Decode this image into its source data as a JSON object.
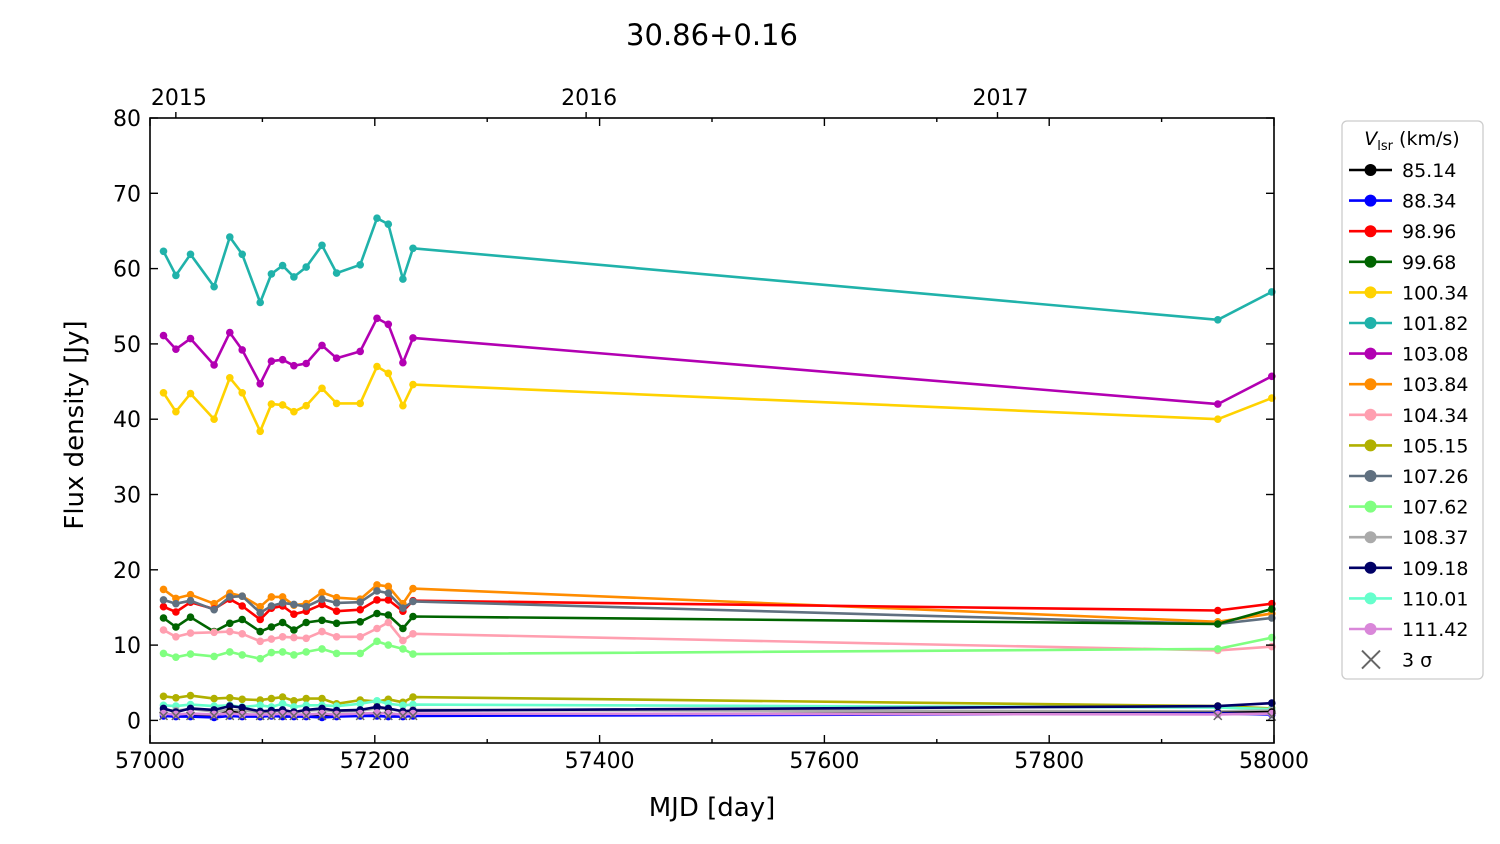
{
  "chart_data": {
    "type": "line",
    "title": "30.86+0.16",
    "xlabel": "MJD [day]",
    "ylabel": "Flux density [Jy]",
    "xlim": [
      57000,
      58000
    ],
    "ylim": [
      -3,
      80
    ],
    "xticks": [
      57000,
      57200,
      57400,
      57600,
      57800,
      58000
    ],
    "yticks": [
      0,
      10,
      20,
      30,
      40,
      50,
      60,
      70,
      80
    ],
    "top_axis": {
      "labels": [
        {
          "label": "2015",
          "mjd": 57023
        },
        {
          "label": "2016",
          "mjd": 57388
        },
        {
          "label": "2017",
          "mjd": 57754
        }
      ]
    },
    "legend": {
      "title_main": "V",
      "title_sub": "lsr",
      "title_unit": " (km/s)",
      "placement": "outside-right",
      "sigma_label": "3 σ"
    },
    "x": [
      57012,
      57023,
      57036,
      57057,
      57071,
      57082,
      57098,
      57108,
      57118,
      57128,
      57139,
      57153,
      57166,
      57187,
      57202,
      57212,
      57225,
      57234,
      57950,
      57998
    ],
    "series": [
      {
        "name": "101.82",
        "color": "#20b2aa",
        "values": [
          62.3,
          59.1,
          61.9,
          57.6,
          64.2,
          61.9,
          55.5,
          59.3,
          60.4,
          58.9,
          60.2,
          63.1,
          59.4,
          60.5,
          66.7,
          65.9,
          58.6,
          62.7,
          53.2,
          56.9
        ]
      },
      {
        "name": "103.08",
        "color": "#b200b2",
        "values": [
          51.1,
          49.3,
          50.7,
          47.2,
          51.5,
          49.2,
          44.7,
          47.7,
          47.9,
          47.1,
          47.4,
          49.8,
          48.1,
          49.0,
          53.4,
          52.6,
          47.5,
          50.8,
          42.0,
          45.7
        ]
      },
      {
        "name": "100.34",
        "color": "#ffd200",
        "values": [
          43.5,
          41.0,
          43.4,
          40.0,
          45.5,
          43.5,
          38.4,
          42.0,
          41.9,
          41.0,
          41.8,
          44.1,
          42.1,
          42.1,
          47.0,
          46.1,
          41.8,
          44.6,
          40.0,
          42.8
        ]
      },
      {
        "name": "103.84",
        "color": "#ff8c00",
        "values": [
          17.4,
          16.2,
          16.7,
          15.5,
          16.9,
          16.5,
          15.1,
          16.4,
          16.4,
          15.3,
          15.5,
          17.0,
          16.3,
          16.1,
          18.0,
          17.8,
          15.5,
          17.5,
          13.1,
          14.2
        ]
      },
      {
        "name": "98.96",
        "color": "#ff0000",
        "values": [
          15.1,
          14.4,
          15.7,
          14.8,
          16.1,
          15.2,
          13.4,
          14.9,
          15.2,
          14.1,
          14.5,
          15.4,
          14.5,
          14.7,
          16.0,
          16.0,
          14.5,
          15.9,
          14.6,
          15.5
        ]
      },
      {
        "name": "107.26",
        "color": "#607080",
        "values": [
          16.0,
          15.5,
          15.9,
          14.7,
          16.4,
          16.5,
          14.3,
          15.2,
          15.6,
          15.4,
          15.1,
          16.1,
          15.6,
          15.7,
          17.2,
          16.9,
          14.9,
          15.8,
          12.8,
          13.6
        ]
      },
      {
        "name": "99.68",
        "color": "#006400",
        "values": [
          13.6,
          12.4,
          13.7,
          11.8,
          12.9,
          13.4,
          11.8,
          12.4,
          13.0,
          12.0,
          13.0,
          13.3,
          12.9,
          13.1,
          14.2,
          14.0,
          12.2,
          13.8,
          12.8,
          14.8
        ]
      },
      {
        "name": "104.34",
        "color": "#ff9fb0",
        "values": [
          12.0,
          11.1,
          11.6,
          11.7,
          11.8,
          11.5,
          10.5,
          10.8,
          11.1,
          11.0,
          10.9,
          11.8,
          11.1,
          11.1,
          12.2,
          13.0,
          10.6,
          11.5,
          9.3,
          9.8
        ]
      },
      {
        "name": "107.62",
        "color": "#80ff80",
        "values": [
          8.9,
          8.4,
          8.8,
          8.5,
          9.1,
          8.7,
          8.2,
          9.0,
          9.1,
          8.7,
          9.1,
          9.5,
          8.9,
          8.9,
          10.5,
          10.0,
          9.5,
          8.8,
          9.5,
          11.0
        ]
      },
      {
        "name": "105.15",
        "color": "#b0b000",
        "values": [
          3.2,
          3.0,
          3.3,
          2.9,
          3.0,
          2.8,
          2.7,
          2.9,
          3.1,
          2.6,
          2.9,
          2.9,
          2.2,
          2.7,
          2.5,
          2.8,
          2.4,
          3.1,
          1.9,
          1.6
        ]
      },
      {
        "name": "110.01",
        "color": "#66ffcc",
        "values": [
          2.0,
          1.9,
          2.1,
          1.9,
          2.0,
          1.8,
          2.0,
          1.8,
          2.2,
          1.8,
          2.0,
          2.0,
          1.9,
          2.2,
          2.6,
          2.2,
          2.0,
          2.1,
          1.7,
          1.5
        ]
      },
      {
        "name": "108.37",
        "color": "#aaaaaa",
        "values": [
          1.4,
          1.3,
          1.5,
          1.2,
          1.4,
          1.3,
          1.1,
          1.2,
          1.3,
          1.1,
          1.3,
          1.4,
          1.2,
          1.3,
          1.6,
          1.5,
          1.2,
          1.4,
          1.2,
          1.3
        ]
      },
      {
        "name": "109.18",
        "color": "#000066",
        "values": [
          1.6,
          1.1,
          1.6,
          1.4,
          1.9,
          1.7,
          1.2,
          1.3,
          1.4,
          1.1,
          1.4,
          1.6,
          1.3,
          1.4,
          1.8,
          1.6,
          1.2,
          1.3,
          1.9,
          2.3
        ]
      },
      {
        "name": "85.14",
        "color": "#000000",
        "values": [
          0.9,
          0.7,
          0.8,
          0.6,
          1.2,
          0.9,
          0.5,
          0.7,
          0.8,
          0.6,
          0.8,
          0.7,
          0.6,
          0.8,
          0.9,
          1.0,
          0.6,
          0.8,
          1.0,
          1.1
        ]
      },
      {
        "name": "88.34",
        "color": "#0000ff",
        "values": [
          0.6,
          0.5,
          0.5,
          0.4,
          0.6,
          0.5,
          0.5,
          0.6,
          0.5,
          0.5,
          0.5,
          0.4,
          0.5,
          0.6,
          0.6,
          0.5,
          0.5,
          0.6,
          0.9,
          0.8
        ]
      },
      {
        "name": "111.42",
        "color": "#d987d9",
        "values": [
          0.9,
          0.8,
          0.9,
          0.8,
          0.9,
          0.8,
          0.8,
          0.8,
          0.9,
          0.8,
          0.8,
          0.9,
          0.8,
          0.9,
          1.0,
          0.9,
          0.8,
          0.9,
          0.8,
          0.9
        ]
      }
    ],
    "legend_order": [
      "85.14",
      "88.34",
      "98.96",
      "99.68",
      "100.34",
      "101.82",
      "103.08",
      "103.84",
      "104.34",
      "105.15",
      "107.26",
      "107.62",
      "108.37",
      "109.18",
      "110.01",
      "111.42"
    ],
    "sigma_points": [
      {
        "x": 57012,
        "y": 0.6
      },
      {
        "x": 57023,
        "y": 0.6
      },
      {
        "x": 57036,
        "y": 0.6
      },
      {
        "x": 57057,
        "y": 0.6
      },
      {
        "x": 57071,
        "y": 0.6
      },
      {
        "x": 57082,
        "y": 0.6
      },
      {
        "x": 57098,
        "y": 0.6
      },
      {
        "x": 57108,
        "y": 0.6
      },
      {
        "x": 57118,
        "y": 0.6
      },
      {
        "x": 57128,
        "y": 0.6
      },
      {
        "x": 57139,
        "y": 0.6
      },
      {
        "x": 57153,
        "y": 0.6
      },
      {
        "x": 57166,
        "y": 0.6
      },
      {
        "x": 57187,
        "y": 0.6
      },
      {
        "x": 57202,
        "y": 0.6
      },
      {
        "x": 57212,
        "y": 0.6
      },
      {
        "x": 57225,
        "y": 0.6
      },
      {
        "x": 57234,
        "y": 0.6
      },
      {
        "x": 57950,
        "y": 0.6
      },
      {
        "x": 57998,
        "y": 0.5
      }
    ]
  }
}
